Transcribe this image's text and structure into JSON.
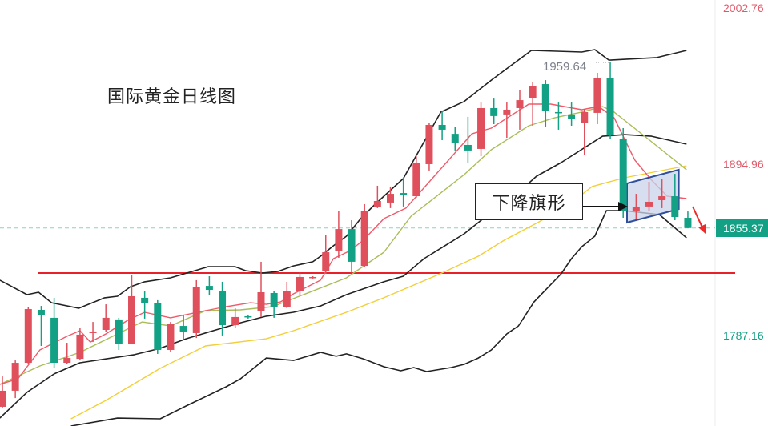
{
  "chart_data": {
    "type": "candlestick",
    "title": "国际黄金日线图",
    "y_axis_labels": [
      "2002.76",
      "1894.96",
      "1787.16"
    ],
    "y_axis_values": [
      2002.76,
      1894.96,
      1787.16
    ],
    "last_price": 1855.37,
    "last_price_label": "1855.37",
    "high_annotation": {
      "value": 1959.64,
      "label": "1959.64",
      "candle": 47
    },
    "colors": {
      "up": "#e0505c",
      "down": "#12a184",
      "ma_fast": "#ef5a6a",
      "ma_mid": "#a9be5a",
      "ma_slow": "#f2cf3a",
      "bands": "#222222",
      "support": "#e8202a",
      "last_price": "#12a184",
      "axis_up_text": "#e05a6a",
      "axis_down_text": "#12a184",
      "flag_fill": "#c9d3ea",
      "flag_stroke": "#2f4f9a",
      "trend_arrow": "#ef2a2a"
    },
    "candles_ohlc": [
      [
        1742.8,
        1761.9,
        1741.8,
        1752.9
      ],
      [
        1752.9,
        1772.0,
        1748.3,
        1770.5
      ],
      [
        1770.5,
        1805.8,
        1769.5,
        1804.3
      ],
      [
        1803.8,
        1806.3,
        1781.1,
        1800.3
      ],
      [
        1798.8,
        1811.4,
        1767.0,
        1770.5
      ],
      [
        1770.5,
        1783.1,
        1769.5,
        1773.6
      ],
      [
        1773.0,
        1792.2,
        1772.0,
        1788.2
      ],
      [
        1789.2,
        1796.2,
        1783.6,
        1790.2
      ],
      [
        1791.2,
        1807.3,
        1789.7,
        1798.8
      ],
      [
        1797.8,
        1798.8,
        1778.6,
        1782.6
      ],
      [
        1782.6,
        1826.0,
        1782.1,
        1812.4
      ],
      [
        1811.4,
        1815.9,
        1798.3,
        1808.3
      ],
      [
        1808.3,
        1809.9,
        1776.1,
        1778.6
      ],
      [
        1778.6,
        1796.2,
        1777.1,
        1795.2
      ],
      [
        1793.7,
        1800.8,
        1785.6,
        1790.2
      ],
      [
        1789.2,
        1822.5,
        1786.1,
        1818.4
      ],
      [
        1818.9,
        1825.0,
        1812.9,
        1816.4
      ],
      [
        1815.4,
        1821.5,
        1787.7,
        1794.2
      ],
      [
        1794.2,
        1804.8,
        1792.2,
        1799.3
      ],
      [
        1799.8,
        1800.8,
        1798.3,
        1799.3
      ],
      [
        1802.8,
        1834.1,
        1799.3,
        1814.9
      ],
      [
        1814.4,
        1815.9,
        1798.8,
        1805.8
      ],
      [
        1805.8,
        1821.5,
        1804.8,
        1815.9
      ],
      [
        1815.9,
        1827.5,
        1813.4,
        1824.5
      ],
      [
        1824.0,
        1825.0,
        1823.5,
        1824.5
      ],
      [
        1828.5,
        1851.2,
        1826.5,
        1840.1
      ],
      [
        1841.1,
        1866.3,
        1836.6,
        1854.7
      ],
      [
        1854.7,
        1860.3,
        1827.0,
        1834.1
      ],
      [
        1831.5,
        1870.4,
        1831.0,
        1866.3
      ],
      [
        1868.4,
        1882.0,
        1867.9,
        1872.4
      ],
      [
        1871.4,
        1881.5,
        1867.9,
        1876.9
      ],
      [
        1877.4,
        1887.0,
        1868.9,
        1876.4
      ],
      [
        1875.4,
        1901.6,
        1874.4,
        1896.6
      ],
      [
        1895.6,
        1921.8,
        1891.6,
        1920.3
      ],
      [
        1920.3,
        1929.4,
        1910.7,
        1917.3
      ],
      [
        1914.7,
        1918.8,
        1904.2,
        1908.7
      ],
      [
        1907.7,
        1925.4,
        1896.6,
        1904.2
      ],
      [
        1905.2,
        1934.4,
        1900.6,
        1930.9
      ],
      [
        1930.9,
        1936.9,
        1920.8,
        1925.9
      ],
      [
        1926.9,
        1934.4,
        1912.2,
        1929.9
      ],
      [
        1930.9,
        1942.0,
        1917.3,
        1935.9
      ],
      [
        1937.4,
        1947.0,
        1919.8,
        1945.0
      ],
      [
        1946.0,
        1948.5,
        1919.3,
        1928.9
      ],
      [
        1928.4,
        1934.4,
        1917.3,
        1927.9
      ],
      [
        1926.9,
        1934.4,
        1919.8,
        1923.9
      ],
      [
        1921.8,
        1930.4,
        1901.6,
        1928.4
      ],
      [
        1927.9,
        1953.1,
        1920.8,
        1949.6
      ],
      [
        1949.6,
        1959.64,
        1911.7,
        1913.7
      ],
      [
        1911.7,
        1918.3,
        1861.8,
        1866.3
      ],
      [
        1865.8,
        1876.9,
        1861.3,
        1868.4
      ],
      [
        1868.9,
        1884.5,
        1866.3,
        1871.9
      ],
      [
        1872.9,
        1886.5,
        1867.9,
        1875.4
      ],
      [
        1875.4,
        1889.5,
        1860.3,
        1862.3
      ],
      [
        1861.8,
        1865.8,
        1855.3,
        1855.37
      ]
    ],
    "lines": {
      "boll_upper": [
        [
          -0.2,
          1822.5
        ],
        [
          1.9,
          1813.4
        ],
        [
          2.8,
          1814.9
        ],
        [
          3.8,
          1808.3
        ],
        [
          5.9,
          1804.8
        ],
        [
          7.9,
          1811.4
        ],
        [
          8.9,
          1812.4
        ],
        [
          9.9,
          1818.4
        ],
        [
          11.0,
          1821.5
        ],
        [
          13.0,
          1824.0
        ],
        [
          15.1,
          1829.0
        ],
        [
          15.9,
          1831.0
        ],
        [
          18.0,
          1831.0
        ],
        [
          18.8,
          1828.5
        ],
        [
          20.1,
          1827.0
        ],
        [
          21.3,
          1828.0
        ],
        [
          22.5,
          1831.5
        ],
        [
          24.0,
          1834.1
        ],
        [
          24.6,
          1837.6
        ],
        [
          25.6,
          1844.2
        ],
        [
          26.6,
          1850.2
        ],
        [
          27.7,
          1861.3
        ],
        [
          28.7,
          1869.4
        ],
        [
          29.5,
          1875.4
        ],
        [
          31.0,
          1886.5
        ],
        [
          33.9,
          1928.4
        ],
        [
          35.7,
          1935.0
        ],
        [
          37.8,
          1948.5
        ],
        [
          40.9,
          1967.2
        ],
        [
          44.8,
          1966.2
        ],
        [
          45.8,
          1967.7
        ],
        [
          46.9,
          1961.1
        ],
        [
          50.6,
          1962.7
        ],
        [
          52.9,
          1967.2
        ]
      ],
      "boll_mid": [
        [
          -0.2,
          1735.7
        ],
        [
          1.9,
          1751.9
        ],
        [
          4.0,
          1763.5
        ],
        [
          6.0,
          1770.5
        ],
        [
          10.2,
          1775.6
        ],
        [
          12.2,
          1779.6
        ],
        [
          14.2,
          1785.6
        ],
        [
          16.3,
          1790.7
        ],
        [
          18.4,
          1795.7
        ],
        [
          20.4,
          1799.8
        ],
        [
          22.5,
          1802.3
        ],
        [
          24.6,
          1806.3
        ],
        [
          26.6,
          1813.4
        ],
        [
          29.5,
          1821.5
        ],
        [
          31.0,
          1825.0
        ],
        [
          32.6,
          1836.1
        ],
        [
          34.1,
          1843.6
        ],
        [
          35.7,
          1851.7
        ],
        [
          38.2,
          1867.9
        ],
        [
          39.9,
          1877.9
        ],
        [
          41.3,
          1888.0
        ],
        [
          43.2,
          1896.6
        ],
        [
          46.4,
          1913.2
        ],
        [
          48.1,
          1914.2
        ],
        [
          50.2,
          1913.2
        ],
        [
          52.9,
          1908.2
        ]
      ],
      "boll_lower": [
        [
          5.3,
          1730.7
        ],
        [
          8.9,
          1735.7
        ],
        [
          12.2,
          1735.2
        ],
        [
          14.2,
          1743.3
        ],
        [
          17.3,
          1755.4
        ],
        [
          18.4,
          1760.4
        ],
        [
          20.4,
          1773.5
        ],
        [
          22.5,
          1772.0
        ],
        [
          24.6,
          1777.1
        ],
        [
          25.8,
          1774.6
        ],
        [
          26.6,
          1776.1
        ],
        [
          27.9,
          1773.0
        ],
        [
          29.5,
          1768.0
        ],
        [
          30.8,
          1765.5
        ],
        [
          31.8,
          1767.5
        ],
        [
          32.8,
          1765.0
        ],
        [
          34.7,
          1767.5
        ],
        [
          35.7,
          1769.5
        ],
        [
          36.8,
          1773.5
        ],
        [
          37.8,
          1778.6
        ],
        [
          39.0,
          1788.7
        ],
        [
          39.9,
          1793.7
        ],
        [
          41.1,
          1808.8
        ],
        [
          43.2,
          1826.5
        ],
        [
          44.0,
          1836.1
        ],
        [
          44.8,
          1843.6
        ],
        [
          45.8,
          1850.2
        ],
        [
          46.7,
          1866.3
        ],
        [
          48.1,
          1866.3
        ],
        [
          50.8,
          1863.8
        ],
        [
          52.9,
          1849.2
        ]
      ],
      "ma_slow": [
        [
          5.3,
          1735.2
        ],
        [
          8.0,
          1746.8
        ],
        [
          12.2,
          1767.0
        ],
        [
          15.7,
          1781.1
        ],
        [
          20.4,
          1785.6
        ],
        [
          22.5,
          1790.7
        ],
        [
          26.6,
          1802.3
        ],
        [
          29.5,
          1811.4
        ],
        [
          33.7,
          1826.0
        ],
        [
          36.8,
          1837.6
        ],
        [
          38.8,
          1847.7
        ],
        [
          41.5,
          1859.3
        ],
        [
          44.0,
          1871.4
        ],
        [
          45.6,
          1881.5
        ],
        [
          48.1,
          1887.0
        ],
        [
          52.9,
          1894.6
        ]
      ],
      "ma_mid": [
        [
          -0.2,
          1756.9
        ],
        [
          2.9,
          1768.5
        ],
        [
          6.0,
          1777.1
        ],
        [
          8.9,
          1788.7
        ],
        [
          10.8,
          1796.2
        ],
        [
          13.0,
          1793.7
        ],
        [
          15.7,
          1803.3
        ],
        [
          18.4,
          1803.8
        ],
        [
          20.9,
          1805.8
        ],
        [
          22.5,
          1810.9
        ],
        [
          26.6,
          1824.0
        ],
        [
          29.5,
          1840.1
        ],
        [
          31.6,
          1862.8
        ],
        [
          35.7,
          1889.0
        ],
        [
          37.8,
          1904.7
        ],
        [
          40.7,
          1919.8
        ],
        [
          42.7,
          1924.8
        ],
        [
          44.8,
          1928.4
        ],
        [
          46.4,
          1931.9
        ],
        [
          47.3,
          1928.4
        ],
        [
          50.2,
          1909.7
        ],
        [
          52.9,
          1892.1
        ]
      ],
      "ma_fast": [
        [
          -0.2,
          1756.9
        ],
        [
          1.2,
          1760.4
        ],
        [
          2.9,
          1778.6
        ],
        [
          5.0,
          1787.2
        ],
        [
          6.0,
          1790.7
        ],
        [
          6.8,
          1783.6
        ],
        [
          8.0,
          1788.7
        ],
        [
          9.7,
          1797.3
        ],
        [
          11.0,
          1802.3
        ],
        [
          13.0,
          1798.8
        ],
        [
          15.7,
          1803.3
        ],
        [
          17.3,
          1805.8
        ],
        [
          19.2,
          1808.3
        ],
        [
          20.4,
          1807.3
        ],
        [
          21.5,
          1808.8
        ],
        [
          22.5,
          1813.9
        ],
        [
          24.6,
          1822.5
        ],
        [
          25.6,
          1836.1
        ],
        [
          26.9,
          1841.1
        ],
        [
          27.9,
          1847.7
        ],
        [
          29.5,
          1861.3
        ],
        [
          31.2,
          1867.9
        ],
        [
          36.3,
          1914.7
        ],
        [
          37.8,
          1918.3
        ],
        [
          40.7,
          1933.4
        ],
        [
          42.4,
          1933.4
        ],
        [
          44.8,
          1929.9
        ],
        [
          46.1,
          1931.9
        ],
        [
          47.3,
          1924.8
        ],
        [
          48.9,
          1898.2
        ],
        [
          50.2,
          1885.5
        ],
        [
          51.4,
          1875.4
        ],
        [
          52.9,
          1873.9
        ]
      ]
    },
    "support_level": 1827.0,
    "flag_pattern": {
      "label": "下降旗形",
      "corners": [
        [
          48.3,
          1883.5
        ],
        [
          52.3,
          1892.1
        ],
        [
          52.3,
          1867.3
        ],
        [
          48.3,
          1858.8
        ]
      ]
    },
    "grid": false,
    "legend": "none"
  }
}
